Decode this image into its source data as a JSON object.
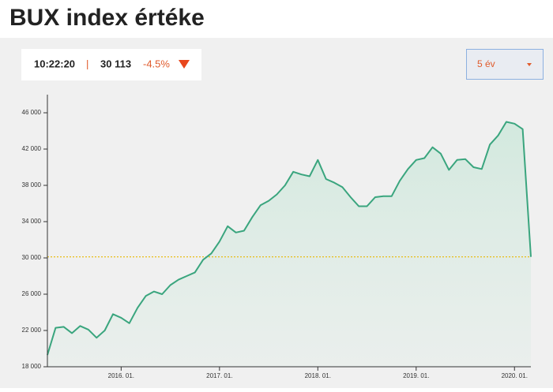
{
  "chart_data": {
    "type": "area-line",
    "title": "BUX index értéke",
    "ticker": {
      "time": "10:22:20",
      "separator": "|",
      "value": "30 113",
      "change": "-4.5%"
    },
    "period_selector": "5 év",
    "x": [
      "2015-04",
      "2015-05",
      "2015-06",
      "2015-07",
      "2015-08",
      "2015-09",
      "2015-10",
      "2015-11",
      "2015-12",
      "2016-01",
      "2016-02",
      "2016-03",
      "2016-04",
      "2016-05",
      "2016-06",
      "2016-07",
      "2016-08",
      "2016-09",
      "2016-10",
      "2016-11",
      "2016-12",
      "2017-01",
      "2017-02",
      "2017-03",
      "2017-04",
      "2017-05",
      "2017-06",
      "2017-07",
      "2017-08",
      "2017-09",
      "2017-10",
      "2017-11",
      "2017-12",
      "2018-01",
      "2018-02",
      "2018-03",
      "2018-04",
      "2018-05",
      "2018-06",
      "2018-07",
      "2018-08",
      "2018-09",
      "2018-10",
      "2018-11",
      "2018-12",
      "2019-01",
      "2019-02",
      "2019-03",
      "2019-04",
      "2019-05",
      "2019-06",
      "2019-07",
      "2019-08",
      "2019-09",
      "2019-10",
      "2019-11",
      "2019-12",
      "2020-01",
      "2020-02",
      "2020-03"
    ],
    "values": [
      19300,
      22300,
      22400,
      21700,
      22500,
      22100,
      21200,
      22000,
      23800,
      23400,
      22800,
      24500,
      25800,
      26300,
      26000,
      27000,
      27600,
      28000,
      28400,
      29800,
      30500,
      31800,
      33500,
      32800,
      33000,
      34500,
      35800,
      36300,
      37000,
      38000,
      39500,
      39200,
      39000,
      40800,
      38700,
      38300,
      37800,
      36700,
      35700,
      35700,
      36700,
      36800,
      36800,
      38500,
      39800,
      40800,
      41000,
      42200,
      41500,
      39700,
      40800,
      40900,
      40000,
      39800,
      42500,
      43500,
      45000,
      44800,
      44200,
      30113
    ],
    "color": "#3aa57e",
    "reference_line": 30113,
    "reference_color": "#e8b800",
    "xlim": [
      "2015-04",
      "2020-03"
    ],
    "xticks": [
      {
        "value": "2016-01",
        "label": "2016. 01."
      },
      {
        "value": "2017-01",
        "label": "2017. 01."
      },
      {
        "value": "2018-01",
        "label": "2018. 01."
      },
      {
        "value": "2019-01",
        "label": "2019. 01."
      },
      {
        "value": "2020-01",
        "label": "2020. 01."
      }
    ],
    "ylim": [
      18000,
      48000
    ],
    "yticks": [
      {
        "value": 18000,
        "label": "18 000"
      },
      {
        "value": 22000,
        "label": "22 000"
      },
      {
        "value": 26000,
        "label": "26 000"
      },
      {
        "value": 30000,
        "label": "30 000"
      },
      {
        "value": 34000,
        "label": "34 000"
      },
      {
        "value": 38000,
        "label": "38 000"
      },
      {
        "value": 42000,
        "label": "42 000"
      },
      {
        "value": 46000,
        "label": "46 000"
      }
    ]
  }
}
